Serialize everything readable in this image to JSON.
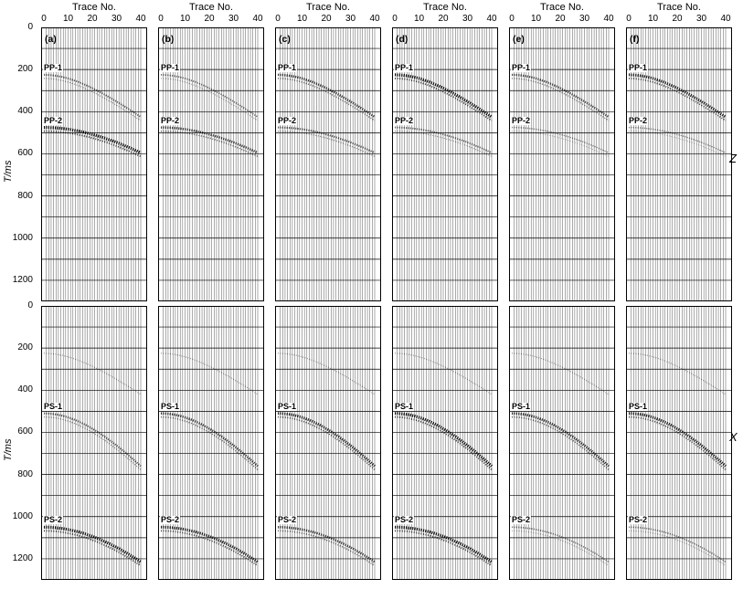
{
  "figure": {
    "x_axis_title": "Trace No.",
    "x_ticks": [
      "0",
      "10",
      "20",
      "30",
      "40"
    ],
    "y_axis_title": "T/ms",
    "y_ticks": [
      "0",
      "200",
      "400",
      "600",
      "800",
      "1000",
      "1200"
    ],
    "rows": [
      {
        "component": "Z",
        "events": [
          {
            "label": "PP-1",
            "t0_ms": 225,
            "t_end_ms": 425
          },
          {
            "label": "PP-2",
            "t0_ms": 475,
            "t_end_ms": 595
          }
        ]
      },
      {
        "component": "X",
        "events": [
          {
            "label": "PS-1",
            "t0_ms": 510,
            "t_end_ms": 760
          },
          {
            "label": "PS-2",
            "t0_ms": 1050,
            "t_end_ms": 1215
          }
        ]
      }
    ],
    "panels": [
      "(a)",
      "(b)",
      "(c)",
      "(d)",
      "(e)",
      "(f)"
    ],
    "trace_range": [
      0,
      40
    ],
    "time_range_ms": [
      0,
      1300
    ],
    "trace_color": "#000000",
    "grid_color": "#000000"
  }
}
